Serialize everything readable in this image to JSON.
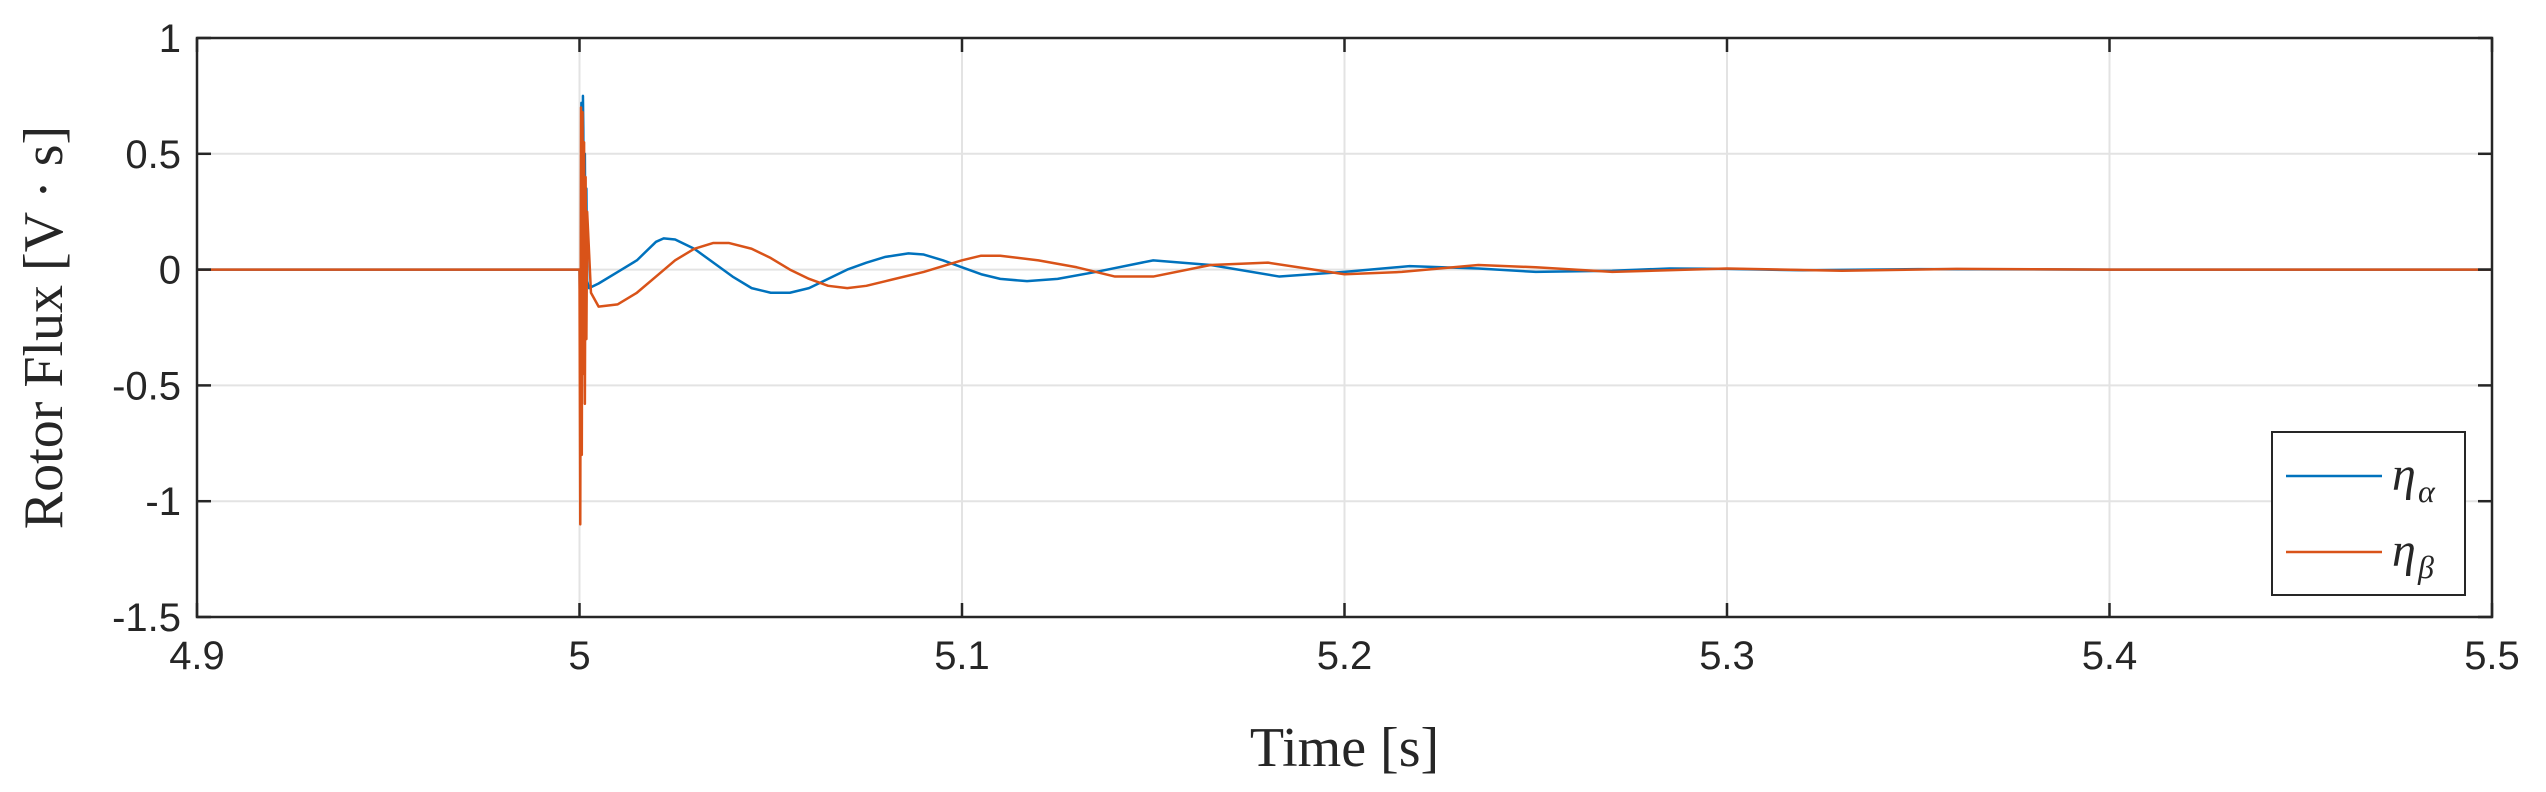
{
  "chart_data": {
    "type": "line",
    "title": "",
    "xlabel": "Time [s]",
    "ylabel": "Rotor Flux [V · s]",
    "xlim": [
      4.9,
      5.5
    ],
    "ylim": [
      -1.5,
      1
    ],
    "xticks": [
      4.9,
      5.0,
      5.1,
      5.2,
      5.3,
      5.4,
      5.5
    ],
    "xtick_labels": [
      "4.9",
      "5",
      "5.1",
      "5.2",
      "5.3",
      "5.4",
      "5.5"
    ],
    "yticks": [
      -1.5,
      -1,
      -0.5,
      0,
      0.5,
      1
    ],
    "ytick_labels": [
      "-1.5",
      "-1",
      "-0.5",
      "0",
      "0.5",
      "1"
    ],
    "grid": true,
    "legend_position": "bottom-right",
    "series": [
      {
        "name": "η",
        "subscript": "α",
        "color": "#0072BD",
        "x": [
          4.9,
          5.0,
          5.0003,
          5.0005,
          5.0007,
          5.0009,
          5.001,
          5.0012,
          5.0014,
          5.0016,
          5.0018,
          5.002,
          5.0025,
          5.005,
          5.01,
          5.015,
          5.02,
          5.022,
          5.025,
          5.03,
          5.035,
          5.04,
          5.045,
          5.05,
          5.055,
          5.06,
          5.065,
          5.07,
          5.075,
          5.08,
          5.086,
          5.09,
          5.095,
          5.1,
          5.105,
          5.11,
          5.117,
          5.125,
          5.135,
          5.15,
          5.165,
          5.183,
          5.2,
          5.217,
          5.235,
          5.25,
          5.27,
          5.285,
          5.3,
          5.32,
          5.35,
          5.4,
          5.45,
          5.5
        ],
        "y": [
          0,
          0,
          -0.4,
          0.72,
          -0.35,
          0.75,
          0.6,
          -0.2,
          0.5,
          -0.1,
          0.35,
          -0.05,
          -0.08,
          -0.06,
          -0.01,
          0.04,
          0.12,
          0.135,
          0.13,
          0.09,
          0.03,
          -0.03,
          -0.08,
          -0.1,
          -0.1,
          -0.08,
          -0.04,
          0.0,
          0.03,
          0.055,
          0.07,
          0.065,
          0.04,
          0.01,
          -0.02,
          -0.04,
          -0.05,
          -0.04,
          -0.01,
          0.04,
          0.02,
          -0.03,
          -0.01,
          0.015,
          0.005,
          -0.01,
          -0.005,
          0.005,
          0.003,
          -0.003,
          0.002,
          0.0,
          0.0,
          0.0
        ]
      },
      {
        "name": "η",
        "subscript": "β",
        "color": "#D95319",
        "x": [
          4.9,
          5.0,
          5.0002,
          5.0004,
          5.0006,
          5.0008,
          5.001,
          5.0012,
          5.0014,
          5.0016,
          5.0018,
          5.002,
          5.003,
          5.005,
          5.01,
          5.015,
          5.02,
          5.025,
          5.03,
          5.035,
          5.039,
          5.045,
          5.05,
          5.055,
          5.06,
          5.065,
          5.07,
          5.075,
          5.08,
          5.09,
          5.1,
          5.105,
          5.11,
          5.12,
          5.13,
          5.14,
          5.15,
          5.165,
          5.18,
          5.2,
          5.215,
          5.235,
          5.25,
          5.27,
          5.3,
          5.33,
          5.36,
          5.4,
          5.45,
          5.5
        ],
        "y": [
          0,
          0,
          -1.1,
          0.7,
          -0.8,
          0.68,
          -0.45,
          0.55,
          -0.58,
          0.4,
          -0.3,
          0.25,
          -0.1,
          -0.16,
          -0.15,
          -0.1,
          -0.03,
          0.04,
          0.09,
          0.115,
          0.115,
          0.09,
          0.05,
          0.0,
          -0.04,
          -0.07,
          -0.08,
          -0.07,
          -0.05,
          -0.01,
          0.04,
          0.06,
          0.06,
          0.04,
          0.01,
          -0.03,
          -0.03,
          0.02,
          0.03,
          -0.02,
          -0.01,
          0.02,
          0.01,
          -0.01,
          0.005,
          -0.005,
          0.003,
          0.0,
          0.0,
          0.0
        ]
      }
    ]
  }
}
